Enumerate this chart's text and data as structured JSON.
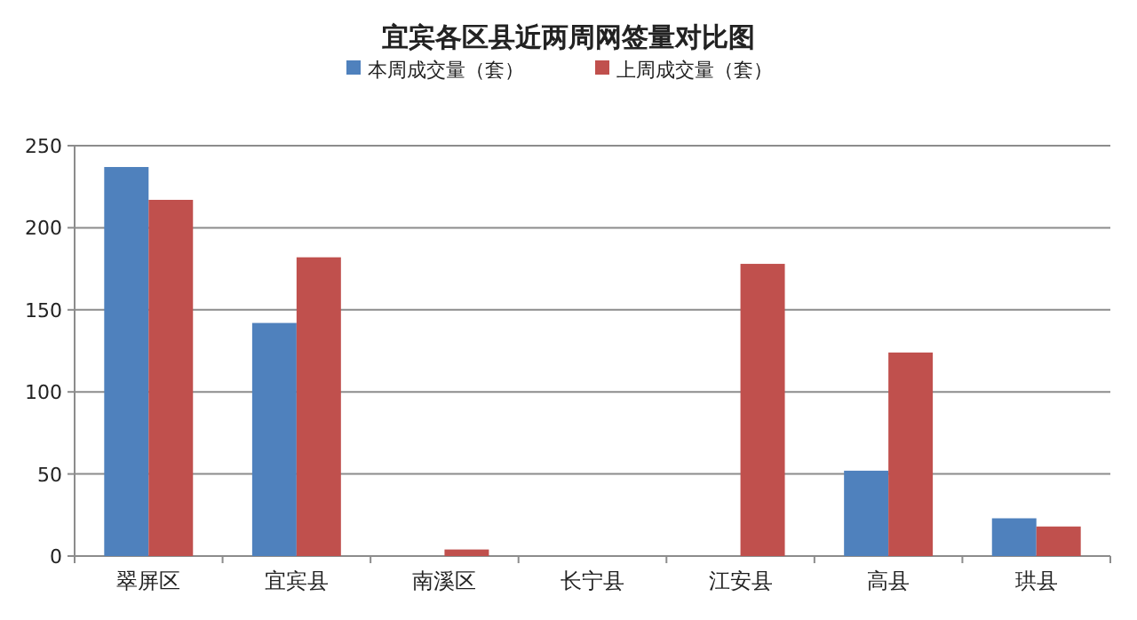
{
  "chart_data": {
    "type": "bar",
    "title": "宜宾各区县近两周网签量对比图",
    "categories": [
      "翠屏区",
      "宜宾县",
      "南溪区",
      "长宁县",
      "江安县",
      "高县",
      "珙县"
    ],
    "series": [
      {
        "name": "本周成交量（套）",
        "color": "#4f81bd",
        "values": [
          237,
          142,
          0,
          0,
          0,
          52,
          23
        ]
      },
      {
        "name": "上周成交量（套）",
        "color": "#c0504d",
        "values": [
          217,
          182,
          4,
          0,
          178,
          124,
          18
        ]
      }
    ],
    "ylim": [
      0,
      250
    ],
    "yticks": [
      0,
      50,
      100,
      150,
      200,
      250
    ],
    "grid": "y",
    "legend": "top"
  }
}
